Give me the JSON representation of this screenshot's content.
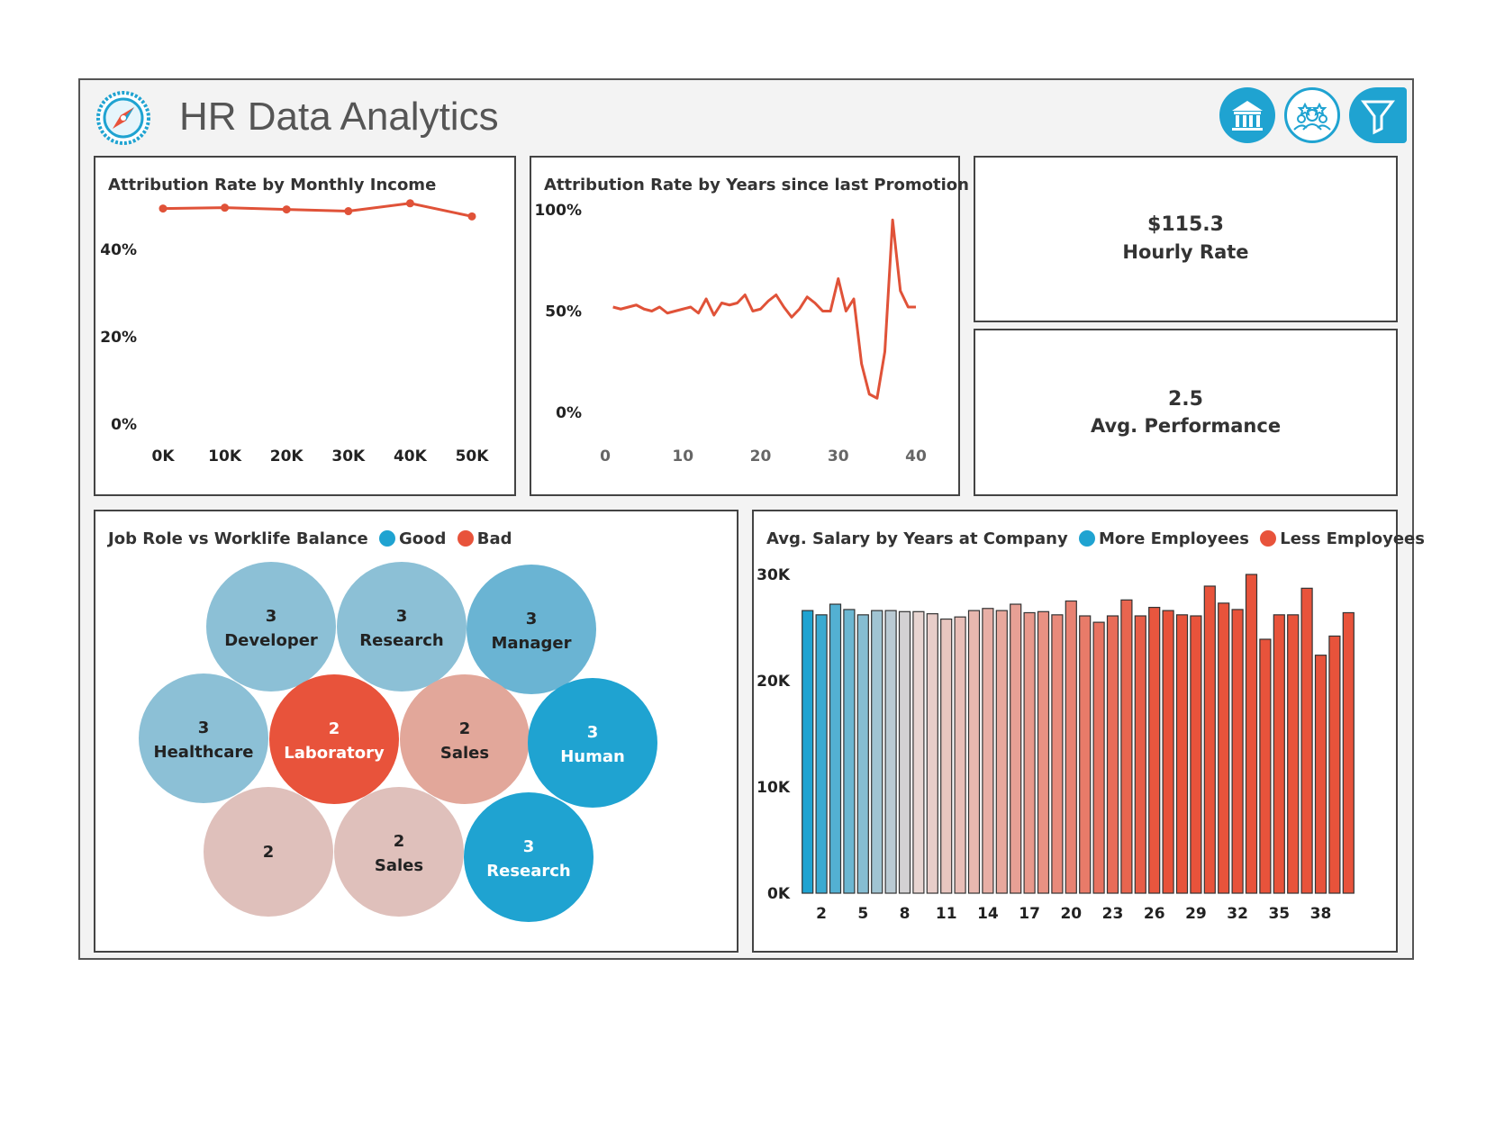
{
  "header": {
    "title": "HR Data Analytics",
    "icons": [
      "compass-logo-icon",
      "bank-icon",
      "team-icon",
      "filter-icon"
    ]
  },
  "colors": {
    "accent_blue": "#1fa3d1",
    "accent_red": "#e8533b",
    "line_red": "#e05238"
  },
  "kpis": {
    "hourly_rate_value": "$115.3",
    "hourly_rate_label": "Hourly Rate",
    "performance_value": "2.5",
    "performance_label": "Avg. Performance"
  },
  "bubble": {
    "title": "Job Role vs Worklife Balance",
    "legend_good": "Good",
    "legend_bad": "Bad",
    "bubbles": [
      {
        "value": "3",
        "label": "Developer",
        "color": "#8cc0d6"
      },
      {
        "value": "3",
        "label": "Research",
        "color": "#8cc0d6"
      },
      {
        "value": "3",
        "label": "Manager",
        "color": "#6ab4d3"
      },
      {
        "value": "3",
        "label": "Healthcare",
        "color": "#8cc0d6"
      },
      {
        "value": "2",
        "label": "Laboratory",
        "color": "#e8533b"
      },
      {
        "value": "2",
        "label": "Sales",
        "color": "#e2a79a"
      },
      {
        "value": "3",
        "label": "Human",
        "color": "#1fa3d1"
      },
      {
        "value": "2",
        "label": "",
        "color": "#dfc0bb"
      },
      {
        "value": "2",
        "label": "Sales",
        "color": "#dfc0bb"
      },
      {
        "value": "3",
        "label": "Research",
        "color": "#1fa3d1"
      }
    ]
  },
  "chart_data": [
    {
      "type": "line",
      "title": "Attribution Rate by Monthly Income",
      "x": [
        0,
        10000,
        20000,
        30000,
        40000,
        50000
      ],
      "y": [
        49.4,
        49.6,
        49.2,
        48.8,
        50.6,
        47.6
      ],
      "xlim": [
        0,
        50000
      ],
      "ylim": [
        0,
        52
      ],
      "x_ticks": [
        "0K",
        "10K",
        "20K",
        "30K",
        "40K",
        "50K"
      ],
      "y_ticks": [
        "0%",
        "20%",
        "40%"
      ]
    },
    {
      "type": "line",
      "title": "Attribution Rate by Years since last Promotion",
      "x": [
        1,
        2,
        3,
        4,
        5,
        6,
        7,
        8,
        9,
        10,
        11,
        12,
        13,
        14,
        15,
        16,
        17,
        18,
        19,
        20,
        21,
        22,
        23,
        24,
        25,
        26,
        27,
        28,
        29,
        30,
        31,
        32,
        33,
        34,
        35,
        36,
        37,
        38,
        39,
        40
      ],
      "y": [
        52,
        51,
        52,
        53,
        51,
        50,
        52,
        49,
        50,
        51,
        52,
        49,
        56,
        48,
        54,
        53,
        54,
        58,
        50,
        51,
        55,
        58,
        52,
        47,
        51,
        57,
        54,
        50,
        50,
        66,
        50,
        56,
        24,
        9,
        7,
        30,
        95,
        60,
        52,
        52
      ],
      "xlim": [
        0,
        40
      ],
      "ylim": [
        0,
        100
      ],
      "x_ticks": [
        "0",
        "10",
        "20",
        "30",
        "40"
      ],
      "y_ticks": [
        "0%",
        "50%",
        "100%"
      ]
    },
    {
      "type": "bar",
      "title": "Avg. Salary by Years at Company",
      "legend": [
        "More Employees",
        "Less Employees"
      ],
      "categories": [
        1,
        2,
        3,
        4,
        5,
        6,
        7,
        8,
        9,
        10,
        11,
        12,
        13,
        14,
        15,
        16,
        17,
        18,
        19,
        20,
        21,
        22,
        23,
        24,
        25,
        26,
        27,
        28,
        29,
        30,
        31,
        32,
        33,
        34,
        35,
        36,
        37,
        38,
        39,
        40
      ],
      "values": [
        26600,
        26200,
        27200,
        26700,
        26200,
        26600,
        26600,
        26500,
        26500,
        26300,
        25800,
        26000,
        26600,
        26800,
        26600,
        27200,
        26400,
        26500,
        26200,
        27500,
        26100,
        25500,
        26100,
        27600,
        26100,
        26900,
        26600,
        26200,
        26100,
        28900,
        27300,
        26700,
        30000,
        23900,
        26200,
        26200,
        28700,
        22400,
        24200,
        26400
      ],
      "ylim": [
        0,
        30000
      ],
      "x_ticks": [
        "2",
        "5",
        "8",
        "11",
        "14",
        "17",
        "20",
        "23",
        "26",
        "29",
        "32",
        "35",
        "38"
      ],
      "y_ticks": [
        "0K",
        "10K",
        "20K",
        "30K"
      ],
      "color_low": "#1fa3d1",
      "color_mid": "#e8d6d3",
      "color_high": "#e8533b"
    }
  ]
}
